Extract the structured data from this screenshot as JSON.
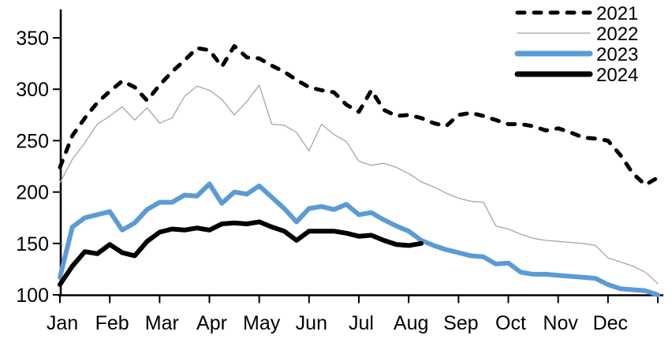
{
  "chart_data": {
    "type": "line",
    "title": "",
    "xlabel": "",
    "ylabel": "",
    "x_axis": {
      "unit": "weeks (Jan-Dec)",
      "tick_labels": [
        "Jan",
        "Feb",
        "Mar",
        "Apr",
        "May",
        "Jun",
        "Jul",
        "Aug",
        "Sep",
        "Oct",
        "Nov",
        "Dec"
      ]
    },
    "y_axis": {
      "ticks": [
        350,
        300,
        250,
        200,
        150,
        100
      ],
      "ylim": [
        100,
        375
      ],
      "grid": false
    },
    "legend": {
      "position": "top-right",
      "entries": [
        "2021",
        "2022",
        "2023",
        "2024"
      ]
    },
    "colors": {
      "series_2021": "#000000",
      "series_2022": "#a6a6a6",
      "series_2023": "#5b9bd5",
      "series_2024": "#000000",
      "axis": "#000000",
      "background": "#ffffff"
    },
    "series": [
      {
        "name": "2021",
        "style": "dashed",
        "color": "#000000",
        "width": 5,
        "values": [
          224,
          255,
          272,
          287,
          298,
          308,
          302,
          289,
          304,
          317,
          328,
          340,
          338,
          322,
          342,
          331,
          330,
          323,
          317,
          309,
          302,
          299,
          297,
          285,
          278,
          299,
          280,
          274,
          275,
          272,
          267,
          264,
          275,
          277,
          274,
          270,
          266,
          266,
          264,
          260,
          262,
          258,
          253,
          252,
          250,
          236,
          218,
          207,
          214
        ]
      },
      {
        "name": "2022",
        "style": "solid-thin",
        "color": "#a6a6a6",
        "width": 1.3,
        "values": [
          209,
          232,
          248,
          266,
          274,
          283,
          270,
          282,
          267,
          272,
          293,
          303,
          299,
          290,
          275,
          288,
          304,
          266,
          265,
          258,
          240,
          266,
          256,
          249,
          230,
          226,
          228,
          224,
          218,
          210,
          205,
          199,
          194,
          191,
          190,
          167,
          164,
          159,
          155,
          153,
          152,
          151,
          150,
          148,
          136,
          132,
          128,
          122,
          111
        ]
      },
      {
        "name": "2023",
        "style": "solid-thick",
        "color": "#5b9bd5",
        "width": 6,
        "values": [
          117,
          166,
          175,
          178,
          181,
          163,
          170,
          183,
          190,
          190,
          197,
          196,
          208,
          189,
          200,
          198,
          206,
          195,
          184,
          171,
          184,
          186,
          183,
          188,
          178,
          180,
          173,
          167,
          162,
          153,
          148,
          144,
          141,
          138,
          137,
          130,
          131,
          122,
          120,
          120,
          119,
          118,
          117,
          116,
          110,
          106,
          105,
          104,
          100
        ]
      },
      {
        "name": "2024",
        "style": "solid-thick",
        "color": "#000000",
        "width": 6,
        "values": [
          110,
          128,
          142,
          140,
          149,
          141,
          138,
          152,
          161,
          164,
          163,
          165,
          163,
          169,
          170,
          169,
          171,
          166,
          162,
          153,
          162,
          162,
          162,
          160,
          157,
          158,
          153,
          149,
          148,
          150
        ]
      }
    ]
  }
}
